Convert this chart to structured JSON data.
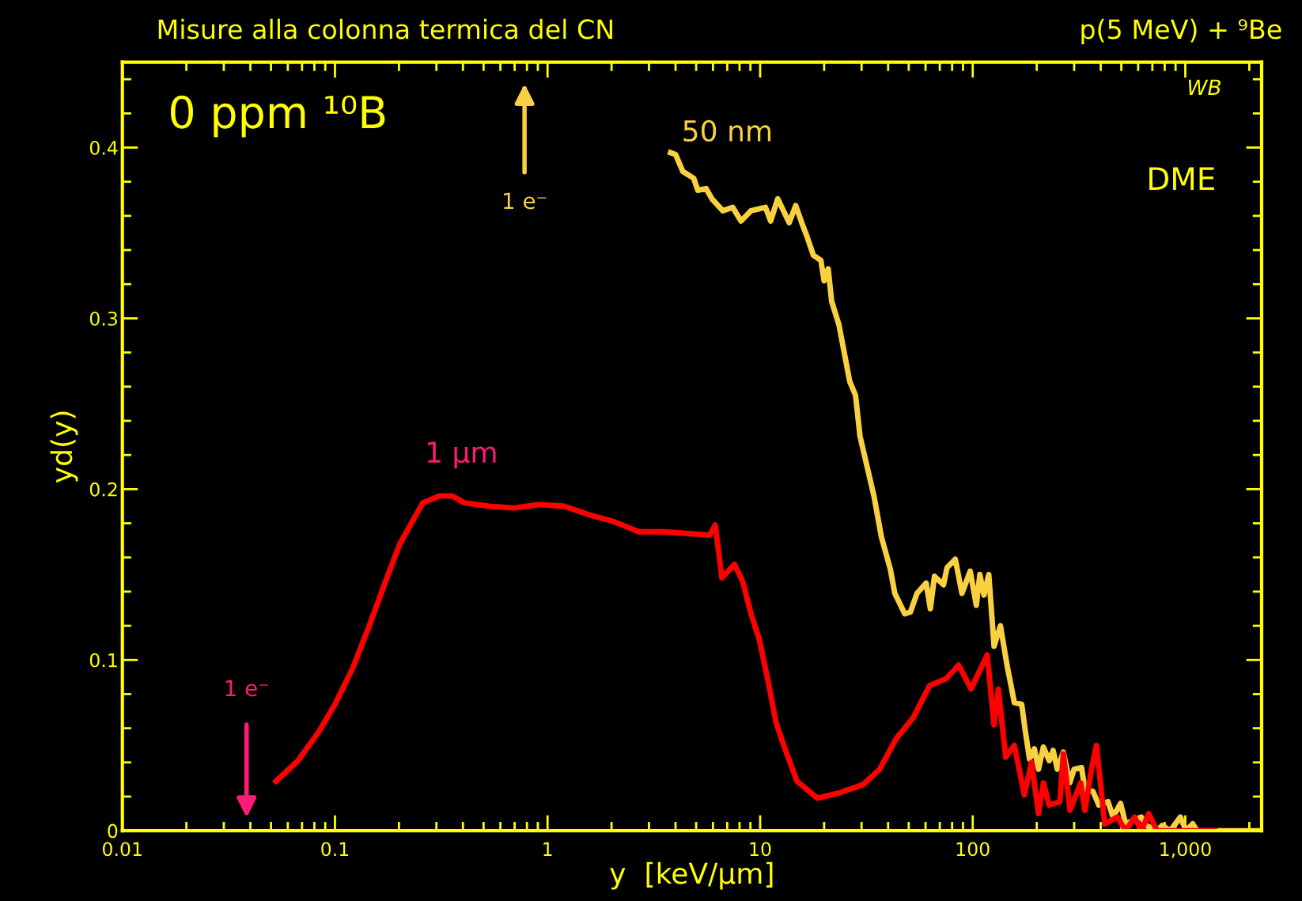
{
  "chart_data": {
    "type": "line",
    "title": "Misure alla colonna termica del CN",
    "subtitle": "p(5 MeV) + ⁹Be",
    "xlabel": "y  [keV/μm]",
    "ylabel": "yd(y)",
    "log": "x",
    "grid": false,
    "legend": false,
    "marker": "none",
    "line_style": "solid",
    "xlim": [
      0.01,
      2286
    ],
    "xticks": [
      0.01,
      0.1,
      1,
      10,
      100,
      {
        "value": 1000,
        "label": "1,000"
      }
    ],
    "ylim": [
      0,
      0.45
    ],
    "yticks": [
      0,
      0.1,
      0.2,
      0.3,
      0.4
    ],
    "series": [
      {
        "name": "50 nm",
        "color": "#f8d040",
        "x": [
          3.79,
          4.0,
          4.33,
          4.87,
          5.09,
          5.57,
          5.93,
          6.67,
          7.43,
          8.13,
          9.06,
          10.6,
          11.2,
          12.1,
          13.7,
          14.7,
          15.8,
          16.6,
          17.8,
          19.3,
          20,
          20.9,
          21.7,
          23.5,
          26.4,
          28.1,
          29.5,
          34.3,
          37.2,
          41,
          43,
          47.9,
          50.9,
          54.7,
          60.4,
          63.2,
          66.1,
          72.9,
          75.7,
          82.8,
          89,
          97.3,
          104,
          108,
          113,
          119,
          126,
          135,
          145,
          157,
          170,
          176,
          185,
          195,
          204,
          215,
          229,
          239,
          250,
          267,
          286,
          300,
          325,
          337,
          368,
          392,
          433,
          457,
          496,
          524,
          567,
          621,
          655,
          736,
          778,
          851,
          948,
          1009,
          1084,
          1135,
          2286
        ],
        "values": [
          0.397,
          0.396,
          0.386,
          0.382,
          0.375,
          0.376,
          0.37,
          0.363,
          0.365,
          0.357,
          0.363,
          0.365,
          0.357,
          0.37,
          0.356,
          0.366,
          0.355,
          0.348,
          0.337,
          0.334,
          0.322,
          0.329,
          0.31,
          0.296,
          0.263,
          0.255,
          0.231,
          0.196,
          0.172,
          0.153,
          0.139,
          0.127,
          0.128,
          0.139,
          0.145,
          0.13,
          0.149,
          0.144,
          0.154,
          0.159,
          0.139,
          0.152,
          0.132,
          0.15,
          0.138,
          0.15,
          0.108,
          0.12,
          0.097,
          0.075,
          0.074,
          0.06,
          0.042,
          0.048,
          0.036,
          0.049,
          0.041,
          0.047,
          0.036,
          0.046,
          0.028,
          0.036,
          0.037,
          0.024,
          0.023,
          0.015,
          0.017,
          0.008,
          0.016,
          0.004,
          0.006,
          0.008,
          0.003,
          0.0,
          0.003,
          0.0,
          0.008,
          0.0,
          0.004,
          0.0,
          0.0
        ]
      },
      {
        "name": "1 μm",
        "color": "#ff0000",
        "x": [
          0.0528,
          0.067,
          0.084,
          0.101,
          0.121,
          0.144,
          0.173,
          0.202,
          0.231,
          0.259,
          0.31,
          0.357,
          0.406,
          0.533,
          0.698,
          0.914,
          1.2,
          1.57,
          2.05,
          2.69,
          3.52,
          4.61,
          5.78,
          6.15,
          6.61,
          7.57,
          8.28,
          9.06,
          9.91,
          10.8,
          11.9,
          13.0,
          14.9,
          18.6,
          23.3,
          30.5,
          36.5,
          43.7,
          52.4,
          62.7,
          75.0,
          85.9,
          98.2,
          117,
          126,
          132,
          143,
          157,
          175,
          189,
          204,
          215,
          229,
          257,
          267,
          287,
          322,
          337,
          362,
          382,
          418,
          479,
          524,
          578,
          621,
          673,
          736,
          1380
        ],
        "values": [
          0.029,
          0.041,
          0.058,
          0.075,
          0.095,
          0.119,
          0.146,
          0.168,
          0.181,
          0.192,
          0.196,
          0.196,
          0.192,
          0.19,
          0.189,
          0.191,
          0.19,
          0.185,
          0.181,
          0.175,
          0.175,
          0.174,
          0.173,
          0.179,
          0.148,
          0.156,
          0.146,
          0.127,
          0.112,
          0.09,
          0.063,
          0.049,
          0.029,
          0.019,
          0.022,
          0.027,
          0.036,
          0.054,
          0.066,
          0.085,
          0.089,
          0.097,
          0.083,
          0.103,
          0.062,
          0.083,
          0.043,
          0.05,
          0.021,
          0.04,
          0.01,
          0.028,
          0.015,
          0.017,
          0.045,
          0.012,
          0.028,
          0.012,
          0.036,
          0.05,
          0.004,
          0.008,
          0.0,
          0.008,
          0.0,
          0.01,
          0.0,
          0.0
        ]
      }
    ],
    "annotations": [
      "0 ppm ¹⁰B",
      "DME",
      "WB",
      "1 e⁻",
      "1 e⁻"
    ]
  }
}
